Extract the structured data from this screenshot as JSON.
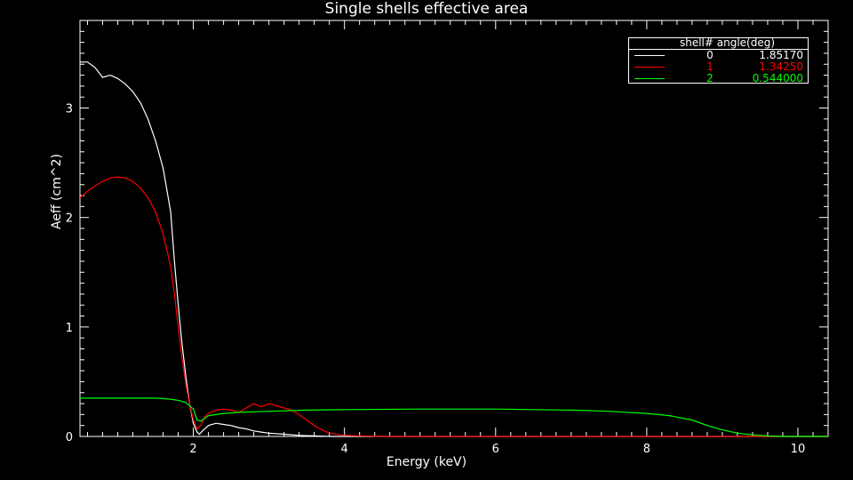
{
  "chart_data": {
    "type": "line",
    "title": "Single shells effective area",
    "xlabel": "Energy (keV)",
    "ylabel": "Aeff (cm^2)",
    "xlim": [
      0.5,
      10.4
    ],
    "ylim": [
      0,
      3.8
    ],
    "x_ticks": [
      2,
      4,
      6,
      8,
      10
    ],
    "y_ticks": [
      0,
      1,
      2,
      3
    ],
    "grid": false,
    "legend_position": "top-right",
    "legend_header": "shell#  angle(deg)",
    "series": [
      {
        "shell": "0",
        "angle": "1.85170",
        "color": "#ffffff",
        "points": [
          [
            0.5,
            3.42
          ],
          [
            0.6,
            3.42
          ],
          [
            0.7,
            3.37
          ],
          [
            0.8,
            3.28
          ],
          [
            0.9,
            3.3
          ],
          [
            1.0,
            3.27
          ],
          [
            1.1,
            3.22
          ],
          [
            1.2,
            3.15
          ],
          [
            1.3,
            3.05
          ],
          [
            1.4,
            2.9
          ],
          [
            1.5,
            2.7
          ],
          [
            1.6,
            2.45
          ],
          [
            1.7,
            2.05
          ],
          [
            1.75,
            1.6
          ],
          [
            1.8,
            1.2
          ],
          [
            1.85,
            0.85
          ],
          [
            1.9,
            0.55
          ],
          [
            1.95,
            0.3
          ],
          [
            2.0,
            0.12
          ],
          [
            2.05,
            0.04
          ],
          [
            2.08,
            0.02
          ],
          [
            2.12,
            0.05
          ],
          [
            2.2,
            0.1
          ],
          [
            2.3,
            0.12
          ],
          [
            2.4,
            0.11
          ],
          [
            2.5,
            0.1
          ],
          [
            2.6,
            0.08
          ],
          [
            2.7,
            0.07
          ],
          [
            2.8,
            0.05
          ],
          [
            2.9,
            0.04
          ],
          [
            3.0,
            0.03
          ],
          [
            3.2,
            0.02
          ],
          [
            3.4,
            0.01
          ],
          [
            3.6,
            0.005
          ],
          [
            3.8,
            0.0
          ],
          [
            10.4,
            0.0
          ]
        ]
      },
      {
        "shell": "1",
        "angle": "1.34250",
        "color": "#ff0000",
        "points": [
          [
            0.5,
            2.18
          ],
          [
            0.6,
            2.24
          ],
          [
            0.7,
            2.29
          ],
          [
            0.8,
            2.33
          ],
          [
            0.9,
            2.36
          ],
          [
            1.0,
            2.37
          ],
          [
            1.1,
            2.36
          ],
          [
            1.2,
            2.33
          ],
          [
            1.3,
            2.27
          ],
          [
            1.4,
            2.18
          ],
          [
            1.5,
            2.05
          ],
          [
            1.6,
            1.85
          ],
          [
            1.7,
            1.55
          ],
          [
            1.75,
            1.3
          ],
          [
            1.8,
            1.0
          ],
          [
            1.85,
            0.72
          ],
          [
            1.9,
            0.48
          ],
          [
            1.95,
            0.3
          ],
          [
            2.0,
            0.15
          ],
          [
            2.05,
            0.07
          ],
          [
            2.1,
            0.1
          ],
          [
            2.15,
            0.18
          ],
          [
            2.2,
            0.21
          ],
          [
            2.3,
            0.24
          ],
          [
            2.4,
            0.25
          ],
          [
            2.5,
            0.24
          ],
          [
            2.6,
            0.22
          ],
          [
            2.7,
            0.26
          ],
          [
            2.8,
            0.3
          ],
          [
            2.9,
            0.27
          ],
          [
            3.0,
            0.3
          ],
          [
            3.1,
            0.28
          ],
          [
            3.2,
            0.26
          ],
          [
            3.3,
            0.24
          ],
          [
            3.4,
            0.2
          ],
          [
            3.5,
            0.15
          ],
          [
            3.6,
            0.1
          ],
          [
            3.7,
            0.06
          ],
          [
            3.8,
            0.03
          ],
          [
            4.0,
            0.01
          ],
          [
            4.2,
            0.005
          ],
          [
            4.5,
            0.0
          ],
          [
            10.4,
            0.0
          ]
        ]
      },
      {
        "shell": "2",
        "angle": "0.544000",
        "color": "#00ff00",
        "points": [
          [
            0.5,
            0.35
          ],
          [
            1.0,
            0.35
          ],
          [
            1.5,
            0.35
          ],
          [
            1.7,
            0.34
          ],
          [
            1.8,
            0.33
          ],
          [
            1.9,
            0.31
          ],
          [
            2.0,
            0.25
          ],
          [
            2.05,
            0.15
          ],
          [
            2.1,
            0.14
          ],
          [
            2.2,
            0.19
          ],
          [
            2.4,
            0.21
          ],
          [
            2.6,
            0.22
          ],
          [
            3.0,
            0.23
          ],
          [
            3.5,
            0.24
          ],
          [
            4.0,
            0.245
          ],
          [
            5.0,
            0.25
          ],
          [
            6.0,
            0.25
          ],
          [
            7.0,
            0.24
          ],
          [
            7.5,
            0.23
          ],
          [
            8.0,
            0.21
          ],
          [
            8.3,
            0.19
          ],
          [
            8.6,
            0.15
          ],
          [
            8.8,
            0.1
          ],
          [
            9.0,
            0.06
          ],
          [
            9.2,
            0.03
          ],
          [
            9.4,
            0.015
          ],
          [
            9.6,
            0.005
          ],
          [
            9.8,
            0.0
          ],
          [
            10.4,
            0.0
          ]
        ]
      }
    ]
  }
}
